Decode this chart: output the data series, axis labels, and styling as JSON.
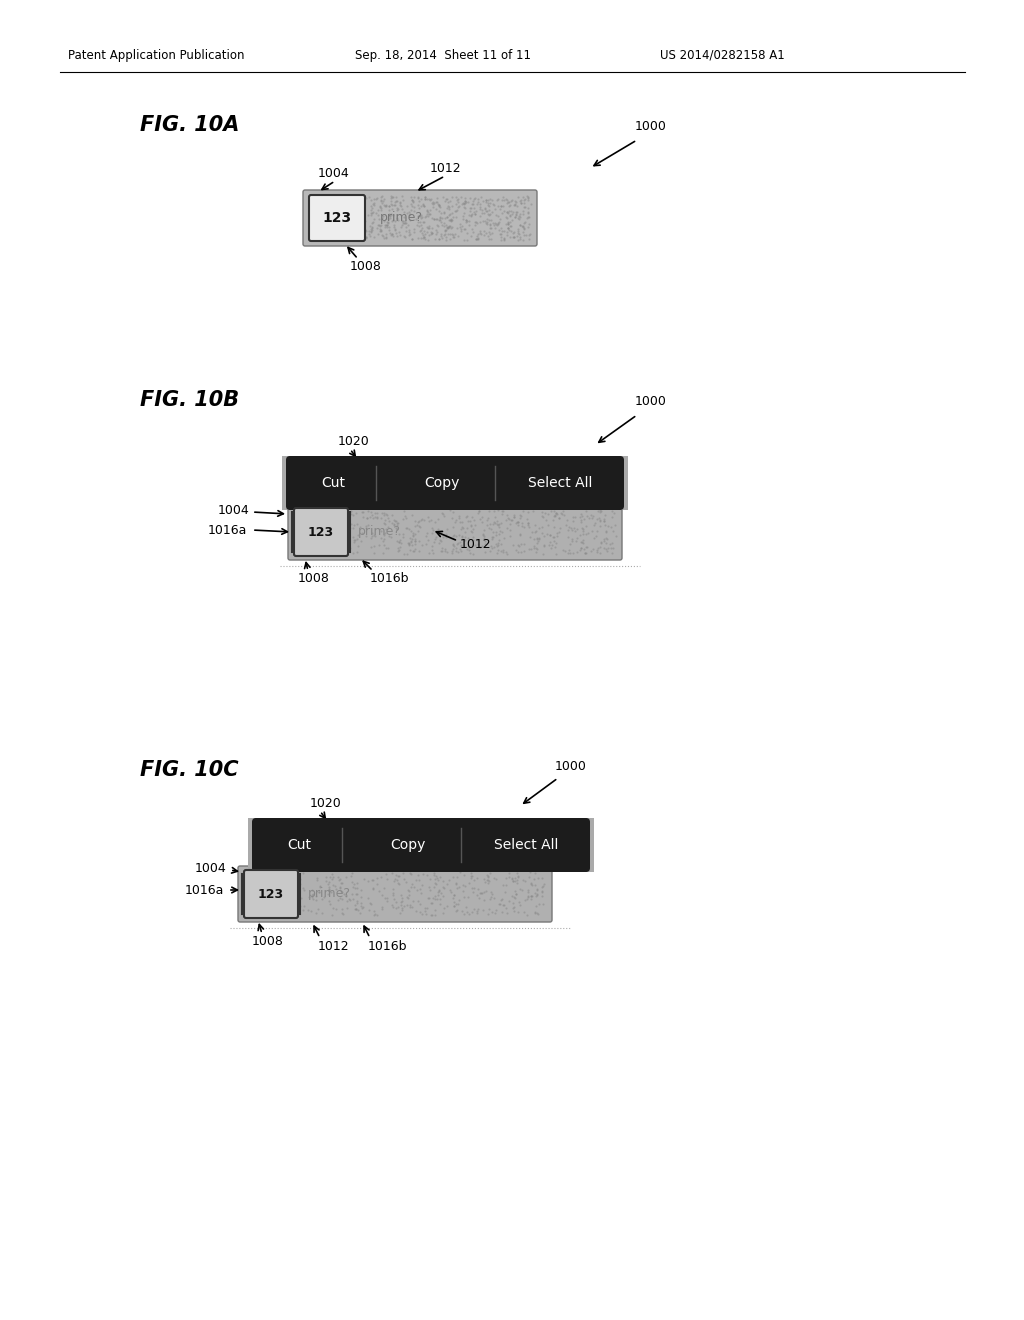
{
  "header_left": "Patent Application Publication",
  "header_mid": "Sep. 18, 2014  Sheet 11 of 11",
  "header_right": "US 2014/0282158 A1",
  "bg_color": "#ffffff",
  "text_color": "#000000",
  "dark_menu_color": "#1a1a1a",
  "menu_outer_color": "#666666",
  "input_bar_color": "#999999",
  "key_bg": "#f0f0f0",
  "key_border": "#444444",
  "right_gray": "#aaaaaa"
}
